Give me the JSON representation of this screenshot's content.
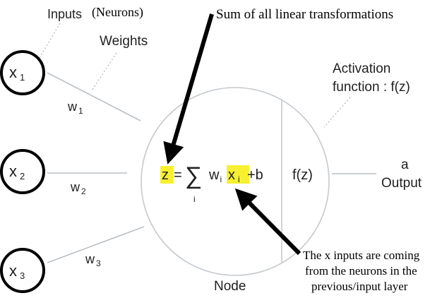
{
  "labels": {
    "inputs": "Inputs",
    "neurons": "(Neurons)",
    "weights": "Weights",
    "sum_note": "Sum of all linear transformations",
    "activation_line1": "Activation",
    "activation_line2": "function : f(z)",
    "output_a": "a",
    "output": "Output",
    "node": "Node",
    "inputs_note_line1": "The x inputs are coming",
    "inputs_note_line2": "from the neurons in the",
    "inputs_note_line3": "previous/input layer"
  },
  "inputs": [
    {
      "symbol": "x",
      "subscript": "1",
      "weight": "w",
      "weight_subscript": "1"
    },
    {
      "symbol": "x",
      "subscript": "2",
      "weight": "w",
      "weight_subscript": "2"
    },
    {
      "symbol": "x",
      "subscript": "3",
      "weight": "w",
      "weight_subscript": "3"
    }
  ],
  "formula": {
    "z": "z",
    "equals": "=",
    "sigma": "∑",
    "sum_index": "i",
    "w": "w",
    "w_subscript": "i",
    "x": "x",
    "x_subscript": "i",
    "plus_b": "+b",
    "activation": "f(z)"
  },
  "colors": {
    "highlight": "#f7f030",
    "line": "#b9bfc4",
    "arrow": "#000000"
  }
}
